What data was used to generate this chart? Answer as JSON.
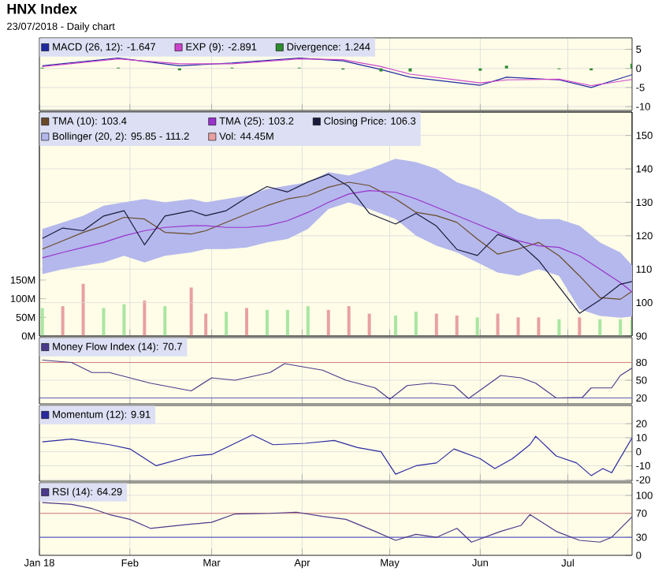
{
  "chart_data": [
    {
      "type": "line",
      "title": "HNX Index",
      "subtitle": "23/07/2018 - Daily chart",
      "xlim": [
        "2018-01-01",
        "2018-07-23"
      ],
      "xticks": [
        {
          "value": "2018-01-01",
          "label": null
        },
        {
          "value": "2018-02-01",
          "label": null
        },
        {
          "value": "2018-03-01",
          "label": null
        },
        {
          "value": "2018-04-01",
          "label": null
        },
        {
          "value": "2018-05-01",
          "label": null
        },
        {
          "value": "2018-06-01",
          "label": null
        },
        {
          "value": "2018-07-01",
          "label": null
        }
      ],
      "tick_labels": "y",
      "ylim": [
        -11,
        8
      ],
      "yticks": [
        5,
        0,
        -5,
        -10
      ],
      "grid": true,
      "legend": "top left",
      "x": [
        "2018-01-02",
        "2018-01-28",
        "2018-02-18",
        "2018-03-08",
        "2018-03-31",
        "2018-04-15",
        "2018-04-28",
        "2018-05-08",
        "2018-06-01",
        "2018-06-10",
        "2018-06-28",
        "2018-07-09",
        "2018-07-23"
      ],
      "series": [
        {
          "name": "MACD (26, 12): -1.647",
          "color": "#1f2aa0",
          "values": [
            0.7,
            2.7,
            0.7,
            1.4,
            2.7,
            2.0,
            -0.3,
            -2.3,
            -4.4,
            -2.3,
            -3.0,
            -5.0,
            -1.647
          ]
        },
        {
          "name": "EXP (9): -2.891",
          "color": "#cc44cc",
          "values": [
            0.5,
            2.5,
            1.2,
            1.2,
            2.5,
            2.3,
            0.5,
            -1.5,
            -3.8,
            -3.0,
            -2.8,
            -4.5,
            -2.891
          ]
        },
        {
          "name": "Divergence: 1.244",
          "type": "bar",
          "color": "#2e8b2e",
          "values": [
            0.2,
            0.2,
            -0.5,
            0.2,
            0.2,
            -0.3,
            -0.8,
            -0.8,
            -0.6,
            0.7,
            -0.2,
            -0.5,
            1.244
          ]
        }
      ]
    },
    {
      "type": "line",
      "xlim": [
        "2018-01-01",
        "2018-07-23"
      ],
      "xticks": [
        {
          "value": "2018-01-01",
          "label": null
        },
        {
          "value": "2018-02-01",
          "label": null
        },
        {
          "value": "2018-03-01",
          "label": null
        },
        {
          "value": "2018-04-01",
          "label": null
        },
        {
          "value": "2018-05-01",
          "label": null
        },
        {
          "value": "2018-06-01",
          "label": null
        },
        {
          "value": "2018-07-01",
          "label": null
        }
      ],
      "tick_labels": "y",
      "ylim": [
        90,
        157
      ],
      "yticks": [
        90,
        100,
        110,
        120,
        130,
        140,
        150
      ],
      "y2lim": [
        0,
        600
      ],
      "y2ticks": [
        {
          "value": 0,
          "label": "0M"
        },
        {
          "value": 50,
          "label": "50M"
        },
        {
          "value": 100,
          "label": "100M"
        },
        {
          "value": 150,
          "label": "150M"
        }
      ],
      "grid": true,
      "legend": "top left",
      "x": [
        "2018-01-02",
        "2018-01-09",
        "2018-01-16",
        "2018-01-23",
        "2018-01-30",
        "2018-02-06",
        "2018-02-13",
        "2018-02-22",
        "2018-02-27",
        "2018-03-06",
        "2018-03-13",
        "2018-03-20",
        "2018-03-27",
        "2018-04-03",
        "2018-04-10",
        "2018-04-17",
        "2018-04-24",
        "2018-05-03",
        "2018-05-10",
        "2018-05-17",
        "2018-05-24",
        "2018-05-31",
        "2018-06-07",
        "2018-06-14",
        "2018-06-21",
        "2018-06-28",
        "2018-07-05",
        "2018-07-12",
        "2018-07-19",
        "2018-07-23"
      ],
      "series": [
        {
          "name": "TMA (10): 103.4",
          "color": "#6b4a2a",
          "values": [
            116,
            118.5,
            121,
            123,
            125.5,
            125,
            121,
            120.5,
            121.5,
            124,
            126.5,
            129,
            131,
            132,
            134.5,
            136,
            135,
            131,
            127,
            126,
            124,
            119,
            114.5,
            116,
            118,
            114,
            108,
            101.5,
            101,
            103.4
          ]
        },
        {
          "name": "TMA (25): 103.2",
          "color": "#9933cc",
          "values": [
            113.4,
            115,
            116.5,
            118,
            120,
            121.5,
            122.5,
            123,
            123,
            122.5,
            122.5,
            123,
            124.5,
            127,
            130,
            132.5,
            133.5,
            133,
            131,
            128.5,
            126,
            123.5,
            121,
            118.5,
            117,
            116.5,
            114,
            110,
            106,
            103.2
          ]
        },
        {
          "name": "Closing Price: 106.3",
          "color": "#1a1a3a",
          "values": [
            119.2,
            122.3,
            121.5,
            125.9,
            127.5,
            117.3,
            125.9,
            127.5,
            126,
            127.5,
            131.4,
            134.7,
            133.1,
            136.1,
            138.4,
            134.7,
            126.7,
            123.5,
            126.7,
            122.9,
            115.9,
            114.1,
            120.4,
            118.1,
            112.6,
            104.7,
            96.8,
            100.8,
            105.5,
            106.3
          ]
        },
        {
          "name": "Bollinger (20, 2): 95.85 - 111.2",
          "color": "#b4b8ec",
          "values": [
            null,
            null,
            null,
            null,
            null,
            null,
            null,
            null,
            null,
            null,
            null,
            null,
            null,
            null,
            null,
            null,
            null,
            null,
            null,
            null,
            null,
            null,
            null,
            null,
            null,
            null,
            null,
            null,
            null,
            null
          ],
          "lower": [
            108.5,
            110,
            111,
            112,
            114,
            112,
            114,
            115,
            116,
            116,
            116.5,
            118,
            119,
            122,
            128,
            130,
            128,
            125,
            120,
            117,
            115,
            112,
            109,
            108,
            110,
            108,
            98,
            96,
            95.5,
            95.85
          ],
          "upper": [
            122,
            124,
            126,
            129,
            130,
            131,
            130,
            131,
            130,
            131,
            132,
            134,
            135,
            136,
            139,
            138,
            140,
            143,
            142,
            140,
            136,
            134,
            131,
            127,
            125,
            125,
            123,
            118,
            115,
            111.2
          ]
        },
        {
          "name": "Vol: 44.45M",
          "type": "bar",
          "axis": "y2",
          "color": "#e8a0a0",
          "values": [
            75,
            80,
            140,
            75,
            85,
            95,
            80,
            130,
            60,
            65,
            75,
            70,
            70,
            80,
            70,
            80,
            60,
            55,
            65,
            60,
            55,
            50,
            60,
            50,
            50,
            45,
            50,
            45,
            45,
            44.45
          ],
          "colors": [
            "#a8e6a0",
            "#e8a0a0",
            "#e8a0a0",
            "#a8e6a0",
            "#a8e6a0",
            "#e8a0a0",
            "#a8e6a0",
            "#e8a0a0",
            "#e8a0a0",
            "#a8e6a0",
            "#e8a0a0",
            "#a8e6a0",
            "#a8e6a0",
            "#a8e6a0",
            "#e8a0a0",
            "#e8a0a0",
            "#e8a0a0",
            "#a8e6a0",
            "#a8e6a0",
            "#e8a0a0",
            "#e8a0a0",
            "#a8e6a0",
            "#e8a0a0",
            "#e8a0a0",
            "#e8a0a0",
            "#a8e6a0",
            "#e8a0a0",
            "#a8e6a0",
            "#a8e6a0",
            "#a8e6a0"
          ]
        }
      ]
    },
    {
      "type": "line",
      "xlim": [
        "2018-01-01",
        "2018-07-23"
      ],
      "xticks": [
        {
          "value": "2018-01-01",
          "label": null
        },
        {
          "value": "2018-02-01",
          "label": null
        },
        {
          "value": "2018-03-01",
          "label": null
        },
        {
          "value": "2018-04-01",
          "label": null
        },
        {
          "value": "2018-05-01",
          "label": null
        },
        {
          "value": "2018-06-01",
          "label": null
        },
        {
          "value": "2018-07-01",
          "label": null
        }
      ],
      "tick_labels": "y",
      "ylim": [
        10,
        122
      ],
      "yticks": [
        20,
        50,
        80
      ],
      "grid": true,
      "legend": "top left",
      "ref_lines": [
        {
          "axis": "y",
          "value": 80,
          "color": "#d08080"
        },
        {
          "axis": "y",
          "value": 20,
          "color": "#6060c0"
        }
      ],
      "series": [
        {
          "name": "Money Flow Index (14): 70.7",
          "color": "#4b3a8c",
          "x": [
            "2018-01-02",
            "2018-01-12",
            "2018-01-19",
            "2018-01-25",
            "2018-02-01",
            "2018-02-08",
            "2018-02-22",
            "2018-03-01",
            "2018-03-09",
            "2018-03-21",
            "2018-03-26",
            "2018-04-02",
            "2018-04-08",
            "2018-04-16",
            "2018-04-26",
            "2018-05-01",
            "2018-05-07",
            "2018-05-15",
            "2018-05-23",
            "2018-05-28",
            "2018-06-08",
            "2018-06-15",
            "2018-06-20",
            "2018-06-27",
            "2018-07-06",
            "2018-07-09",
            "2018-07-16",
            "2018-07-19",
            "2018-07-23"
          ],
          "values": [
            84,
            80,
            63,
            63,
            54,
            45,
            32,
            54,
            50,
            63,
            78,
            72,
            67,
            50,
            37,
            18,
            41,
            45,
            41,
            19,
            58,
            54,
            45,
            20,
            21,
            37,
            37,
            58,
            70.7
          ]
        }
      ]
    },
    {
      "type": "line",
      "xlim": [
        "2018-01-01",
        "2018-07-23"
      ],
      "xticks": [
        {
          "value": "2018-01-01",
          "label": null
        },
        {
          "value": "2018-02-01",
          "label": null
        },
        {
          "value": "2018-03-01",
          "label": null
        },
        {
          "value": "2018-04-01",
          "label": null
        },
        {
          "value": "2018-05-01",
          "label": null
        },
        {
          "value": "2018-06-01",
          "label": null
        },
        {
          "value": "2018-07-01",
          "label": null
        }
      ],
      "tick_labels": "y",
      "ylim": [
        -21,
        33
      ],
      "yticks": [
        -20,
        -10,
        0,
        10,
        20
      ],
      "grid": true,
      "legend": "top left",
      "series": [
        {
          "name": "Momentum (12): 9.91",
          "color": "#2a2aa0",
          "x": [
            "2018-01-02",
            "2018-01-12",
            "2018-01-25",
            "2018-02-01",
            "2018-02-10",
            "2018-02-22",
            "2018-03-01",
            "2018-03-15",
            "2018-03-22",
            "2018-04-02",
            "2018-04-12",
            "2018-04-20",
            "2018-04-28",
            "2018-05-03",
            "2018-05-10",
            "2018-05-17",
            "2018-05-23",
            "2018-06-01",
            "2018-06-06",
            "2018-06-12",
            "2018-06-18",
            "2018-06-20",
            "2018-06-27",
            "2018-07-04",
            "2018-07-09",
            "2018-07-13",
            "2018-07-16",
            "2018-07-23"
          ],
          "values": [
            7,
            9,
            5,
            2,
            -10,
            -3,
            -2,
            12,
            5,
            6,
            8,
            3,
            0,
            -16,
            -10,
            -8,
            2,
            -5,
            -12,
            -5,
            5,
            11,
            -3,
            -8,
            -17,
            -12,
            -15,
            9.91
          ]
        }
      ]
    },
    {
      "type": "line",
      "xlim": [
        "2018-01-01",
        "2018-07-23"
      ],
      "xticks": [
        {
          "value": "2018-01-01",
          "label": "Jan 18"
        },
        {
          "value": "2018-02-01",
          "label": "Feb"
        },
        {
          "value": "2018-03-01",
          "label": "Mar"
        },
        {
          "value": "2018-04-01",
          "label": "Apr"
        },
        {
          "value": "2018-05-01",
          "label": "May"
        },
        {
          "value": "2018-06-01",
          "label": "Jun"
        },
        {
          "value": "2018-07-01",
          "label": "Jul"
        }
      ],
      "ylim": [
        0,
        121
      ],
      "yticks": [
        0,
        30,
        70,
        100
      ],
      "grid": true,
      "legend": "top left",
      "ref_lines": [
        {
          "axis": "y",
          "value": 70,
          "color": "#d08080"
        },
        {
          "axis": "y",
          "value": 30,
          "color": "#6060c0"
        }
      ],
      "series": [
        {
          "name": "RSI (14): 64.29",
          "color": "#4b3a8c",
          "x": [
            "2018-01-02",
            "2018-01-12",
            "2018-01-19",
            "2018-01-25",
            "2018-02-01",
            "2018-02-08",
            "2018-02-22",
            "2018-03-01",
            "2018-03-09",
            "2018-03-21",
            "2018-03-30",
            "2018-04-08",
            "2018-04-16",
            "2018-04-26",
            "2018-05-03",
            "2018-05-10",
            "2018-05-17",
            "2018-05-24",
            "2018-05-29",
            "2018-06-08",
            "2018-06-15",
            "2018-06-18",
            "2018-06-27",
            "2018-07-05",
            "2018-07-12",
            "2018-07-16",
            "2018-07-23"
          ],
          "values": [
            88,
            85,
            78,
            68,
            60,
            45,
            52,
            55,
            69,
            70,
            72,
            65,
            60,
            40,
            25,
            35,
            30,
            45,
            22,
            40,
            50,
            68,
            40,
            25,
            22,
            30,
            64.29
          ]
        }
      ]
    }
  ]
}
